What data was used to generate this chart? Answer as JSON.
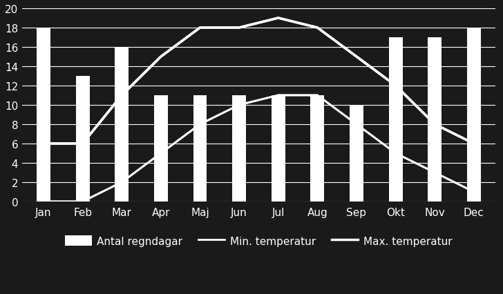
{
  "months": [
    "Jan",
    "Feb",
    "Mar",
    "Apr",
    "Maj",
    "Jun",
    "Jul",
    "Aug",
    "Sep",
    "Okt",
    "Nov",
    "Dec"
  ],
  "bar_values": [
    18,
    13,
    16,
    11,
    11,
    11,
    11,
    11,
    10,
    17,
    17,
    18
  ],
  "min_temp": [
    0,
    0,
    2,
    5,
    8,
    10,
    11,
    11,
    8,
    5,
    3,
    1
  ],
  "max_temp": [
    6,
    6,
    11,
    15,
    18,
    18,
    19,
    18,
    15,
    12,
    8,
    6
  ],
  "bar_color": "#ffffff",
  "background_color": "#1a1a1a",
  "text_color": "#ffffff",
  "grid_color": "#ffffff",
  "line_color": "#ffffff",
  "ylim": [
    0,
    20
  ],
  "yticks": [
    0,
    2,
    4,
    6,
    8,
    10,
    12,
    14,
    16,
    18,
    20
  ],
  "legend_labels": [
    "Antal regndagar",
    "Min. temperatur",
    "Max. temperatur"
  ],
  "tick_fontsize": 11,
  "legend_fontsize": 11,
  "bar_width": 0.35
}
